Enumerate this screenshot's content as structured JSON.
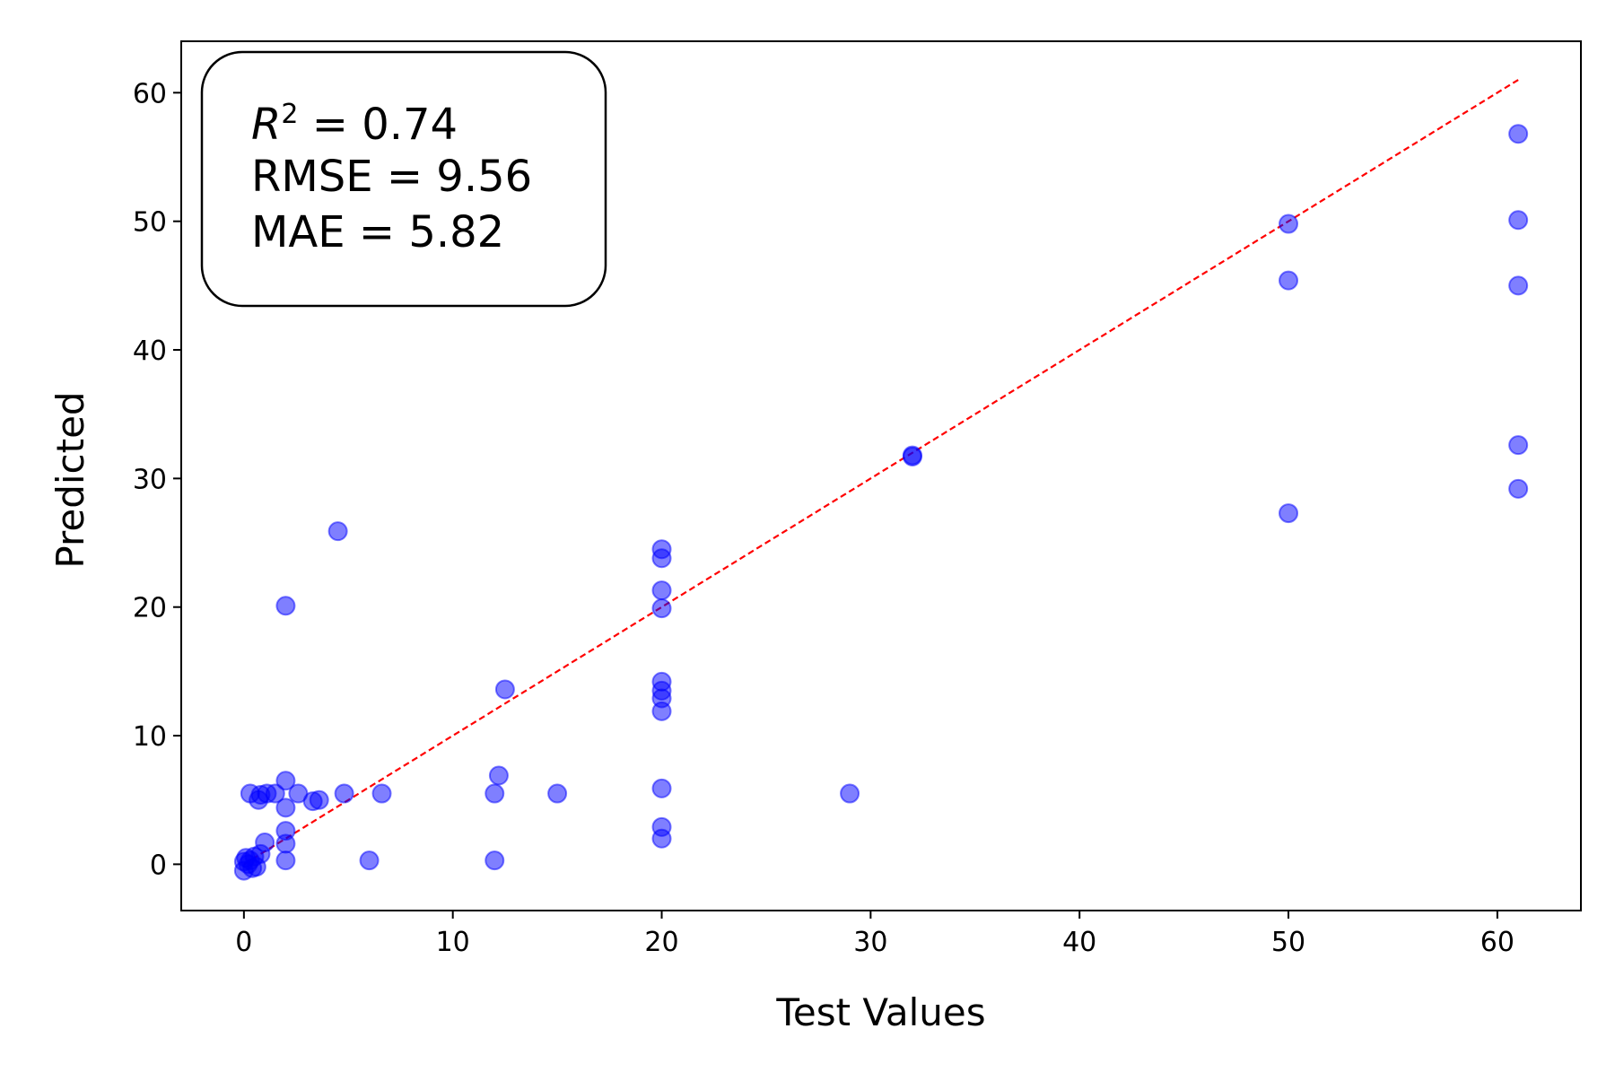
{
  "chart_data": {
    "type": "scatter",
    "xlabel": "Test Values",
    "ylabel": "Predicted",
    "xlim": [
      -3,
      64
    ],
    "ylim": [
      -3.6,
      64
    ],
    "xticks": [
      0,
      10,
      20,
      30,
      40,
      50,
      60
    ],
    "yticks": [
      0,
      10,
      20,
      30,
      40,
      50,
      60
    ],
    "grid": false,
    "stats": {
      "r2_symbol": "R",
      "r2_exp": "2",
      "r2_value": " = 0.74",
      "rmse_line": "RMSE = 9.56",
      "mae_line": "MAE = 5.82"
    },
    "reference_line": {
      "x": [
        0,
        61
      ],
      "y": [
        0,
        61
      ],
      "style": "dashed",
      "color": "#ff0000"
    },
    "marker_color": "#0000ff",
    "marker_alpha": 0.5,
    "points": [
      {
        "x": 0.0,
        "y": -0.5
      },
      {
        "x": 0.0,
        "y": 0.2
      },
      {
        "x": 0.1,
        "y": 0.5
      },
      {
        "x": 0.2,
        "y": 0.0
      },
      {
        "x": 0.3,
        "y": 0.3
      },
      {
        "x": 0.4,
        "y": -0.3
      },
      {
        "x": 0.5,
        "y": 0.6
      },
      {
        "x": 0.6,
        "y": -0.2
      },
      {
        "x": 0.8,
        "y": 0.8
      },
      {
        "x": 0.3,
        "y": 5.5
      },
      {
        "x": 0.7,
        "y": 5.0
      },
      {
        "x": 0.8,
        "y": 5.4
      },
      {
        "x": 1.1,
        "y": 5.5
      },
      {
        "x": 1.5,
        "y": 5.5
      },
      {
        "x": 1.0,
        "y": 1.7
      },
      {
        "x": 2.0,
        "y": 20.1
      },
      {
        "x": 2.0,
        "y": 6.5
      },
      {
        "x": 2.0,
        "y": 4.4
      },
      {
        "x": 2.0,
        "y": 2.6
      },
      {
        "x": 2.0,
        "y": 1.6
      },
      {
        "x": 2.0,
        "y": 0.3
      },
      {
        "x": 2.6,
        "y": 5.5
      },
      {
        "x": 3.3,
        "y": 4.9
      },
      {
        "x": 3.6,
        "y": 5.0
      },
      {
        "x": 4.5,
        "y": 25.9
      },
      {
        "x": 4.8,
        "y": 5.5
      },
      {
        "x": 6.0,
        "y": 0.3
      },
      {
        "x": 6.6,
        "y": 5.5
      },
      {
        "x": 12.0,
        "y": 5.5
      },
      {
        "x": 12.0,
        "y": 0.3
      },
      {
        "x": 12.2,
        "y": 6.9
      },
      {
        "x": 12.5,
        "y": 13.6
      },
      {
        "x": 15.0,
        "y": 5.5
      },
      {
        "x": 20.0,
        "y": 24.5
      },
      {
        "x": 20.0,
        "y": 23.8
      },
      {
        "x": 20.0,
        "y": 21.3
      },
      {
        "x": 20.0,
        "y": 19.9
      },
      {
        "x": 20.0,
        "y": 14.2
      },
      {
        "x": 20.0,
        "y": 13.5
      },
      {
        "x": 20.0,
        "y": 12.9
      },
      {
        "x": 20.0,
        "y": 11.9
      },
      {
        "x": 20.0,
        "y": 5.9
      },
      {
        "x": 20.0,
        "y": 2.9
      },
      {
        "x": 20.0,
        "y": 2.0
      },
      {
        "x": 29.0,
        "y": 5.5
      },
      {
        "x": 32.0,
        "y": 31.8
      },
      {
        "x": 32.0,
        "y": 31.7
      },
      {
        "x": 50.0,
        "y": 49.8
      },
      {
        "x": 50.0,
        "y": 45.4
      },
      {
        "x": 50.0,
        "y": 27.3
      },
      {
        "x": 61.0,
        "y": 56.8
      },
      {
        "x": 61.0,
        "y": 50.1
      },
      {
        "x": 61.0,
        "y": 45.0
      },
      {
        "x": 61.0,
        "y": 32.6
      },
      {
        "x": 61.0,
        "y": 29.2
      }
    ]
  }
}
